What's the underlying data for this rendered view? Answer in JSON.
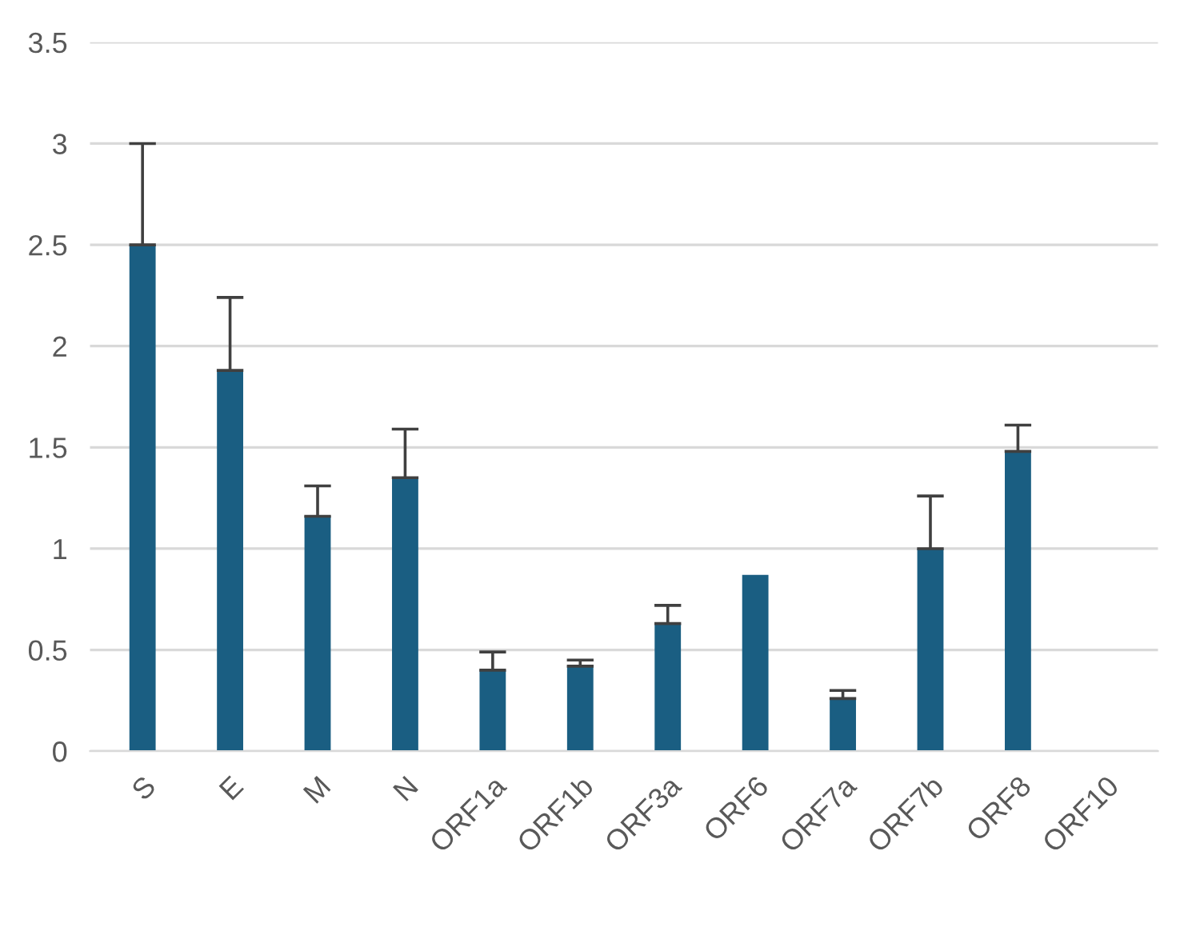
{
  "chart_data": {
    "type": "bar",
    "categories": [
      "S",
      "E",
      "M",
      "N",
      "ORF1a",
      "ORF1b",
      "ORF3a",
      "ORF6",
      "ORF7a",
      "ORF7b",
      "ORF8",
      "ORF10"
    ],
    "values": [
      2.5,
      1.88,
      1.16,
      1.35,
      0.4,
      0.42,
      0.63,
      0.87,
      0.26,
      1.0,
      1.48,
      0
    ],
    "errors": [
      [
        2.5,
        3.0
      ],
      [
        1.88,
        2.24
      ],
      [
        1.16,
        1.31
      ],
      [
        1.35,
        1.59
      ],
      [
        0.4,
        0.49
      ],
      [
        0.42,
        0.45
      ],
      [
        0.63,
        0.72
      ],
      null,
      [
        0.26,
        0.3
      ],
      [
        1.0,
        1.26
      ],
      [
        1.48,
        1.61
      ],
      null
    ],
    "color": "#1a5e82",
    "ylim": [
      0,
      3.5
    ],
    "yticks": [
      0,
      0.5,
      1,
      1.5,
      2,
      2.5,
      3,
      3.5
    ],
    "grid": "y"
  }
}
